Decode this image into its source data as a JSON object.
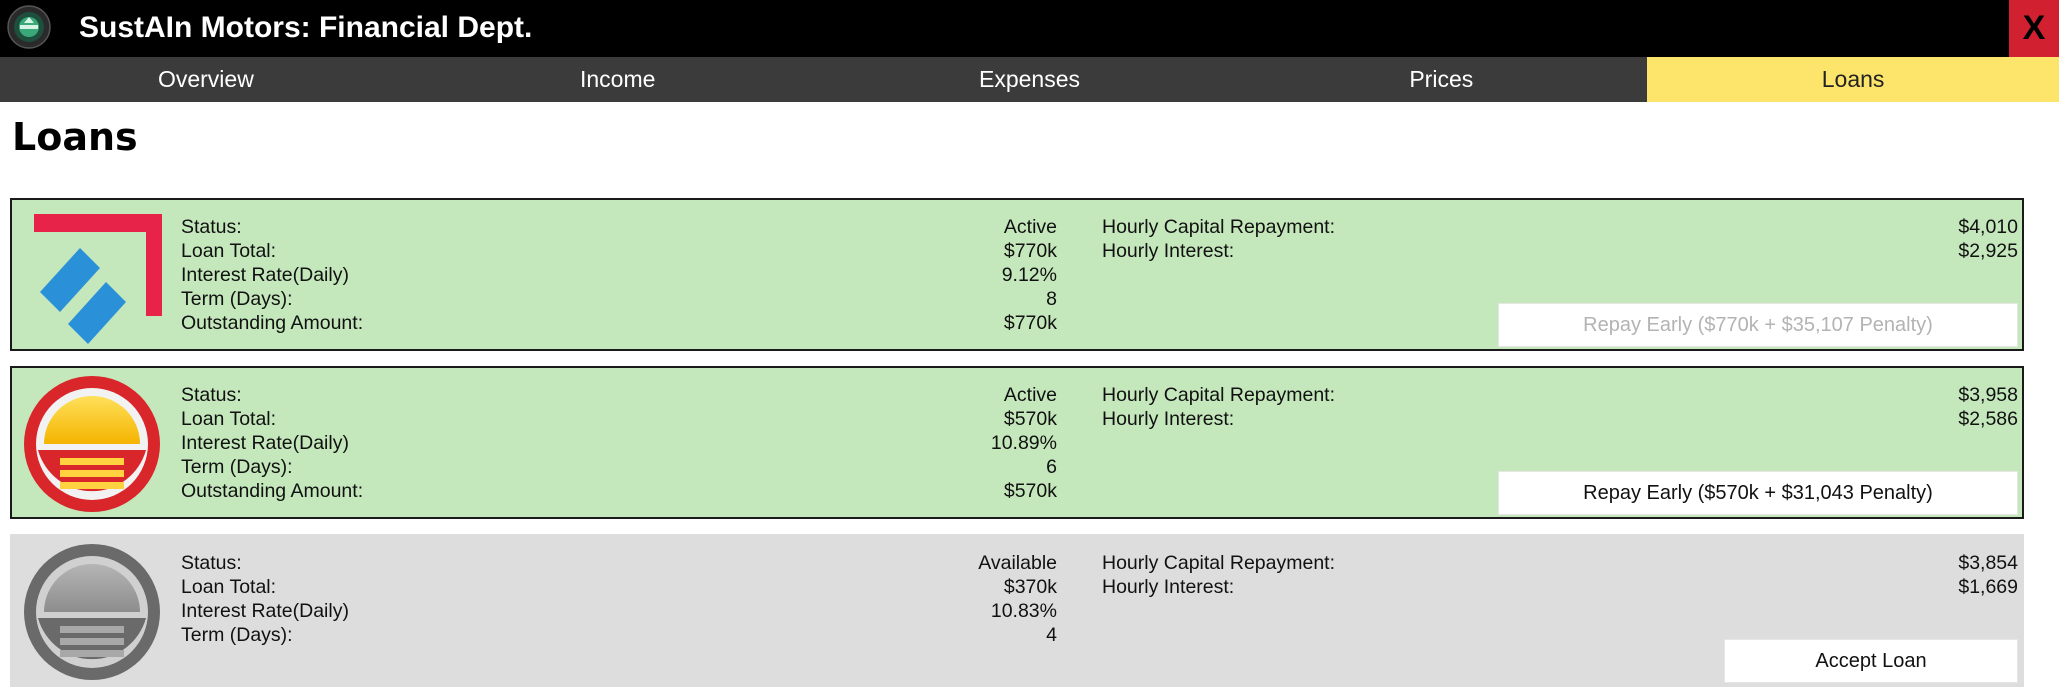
{
  "app": {
    "title": "SustAIn Motors: Financial Dept.",
    "close_label": "X"
  },
  "tabs": [
    {
      "label": "Overview"
    },
    {
      "label": "Income"
    },
    {
      "label": "Expenses"
    },
    {
      "label": "Prices"
    },
    {
      "label": "Loans",
      "active": true
    }
  ],
  "page": {
    "title": "Loans"
  },
  "labels": {
    "status": "Status:",
    "loan_total": "Loan Total:",
    "interest_rate": "Interest Rate(Daily)",
    "term": "Term (Days):",
    "outstanding": "Outstanding Amount:",
    "hourly_capital": "Hourly Capital Repayment:",
    "hourly_interest": "Hourly Interest:"
  },
  "loans": [
    {
      "status": "Active",
      "loan_total": "$770k",
      "interest_rate": "9.12%",
      "term": "8",
      "outstanding": "$770k",
      "hourly_capital": "$4,010",
      "hourly_interest": "$2,925",
      "action_label": "Repay Early ($770k + $35,107 Penalty)",
      "action_enabled": false,
      "logo": "red-blue-arrow-logo-icon"
    },
    {
      "status": "Active",
      "loan_total": "$570k",
      "interest_rate": "10.89%",
      "term": "6",
      "outstanding": "$570k",
      "hourly_capital": "$3,958",
      "hourly_interest": "$2,586",
      "action_label": "Repay Early ($570k + $31,043 Penalty)",
      "action_enabled": true,
      "logo": "sunset-circle-logo-icon"
    },
    {
      "status": "Available",
      "loan_total": "$370k",
      "interest_rate": "10.83%",
      "term": "4",
      "hourly_capital": "$3,854",
      "hourly_interest": "$1,669",
      "action_label": "Accept Loan",
      "action_enabled": true,
      "logo": "grey-circle-logo-icon"
    }
  ],
  "colors": {
    "titlebar": "#000000",
    "close": "#d1202f",
    "tabbar": "#3b3b3b",
    "active_tab": "#fde56b",
    "active_loan": "#c4e8bc",
    "available_loan": "#dddddd"
  }
}
